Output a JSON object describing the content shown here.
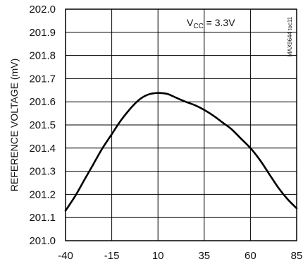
{
  "chart_data": {
    "type": "line",
    "title": "",
    "xlabel": "",
    "ylabel": "REFERENCE VOLTAGE (mV)",
    "annotation": {
      "main": "V",
      "sub": "CC",
      "rest": " = 3.3V"
    },
    "figure_code": "MAX9644 toc11",
    "xlim": [
      -40,
      85
    ],
    "ylim": [
      201.0,
      202.0
    ],
    "x_ticks": [
      "-40",
      "-15",
      "10",
      "35",
      "60",
      "85"
    ],
    "y_ticks": [
      "201.0",
      "201.1",
      "201.2",
      "201.3",
      "201.4",
      "201.5",
      "201.6",
      "201.7",
      "201.8",
      "201.9",
      "202.0"
    ],
    "grid": true,
    "series": [
      {
        "x": [
          -40,
          -35,
          -30,
          -25,
          -20,
          -15,
          -10,
          -5,
          0,
          5,
          10,
          15,
          20,
          25,
          30,
          35,
          40,
          45,
          50,
          55,
          60,
          65,
          70,
          75,
          80,
          85
        ],
        "y": [
          201.13,
          201.19,
          201.26,
          201.33,
          201.4,
          201.46,
          201.52,
          201.57,
          201.61,
          201.632,
          201.638,
          201.634,
          201.617,
          201.6,
          201.585,
          201.565,
          201.54,
          201.51,
          201.48,
          201.44,
          201.4,
          201.35,
          201.29,
          201.23,
          201.18,
          201.14
        ]
      }
    ]
  }
}
